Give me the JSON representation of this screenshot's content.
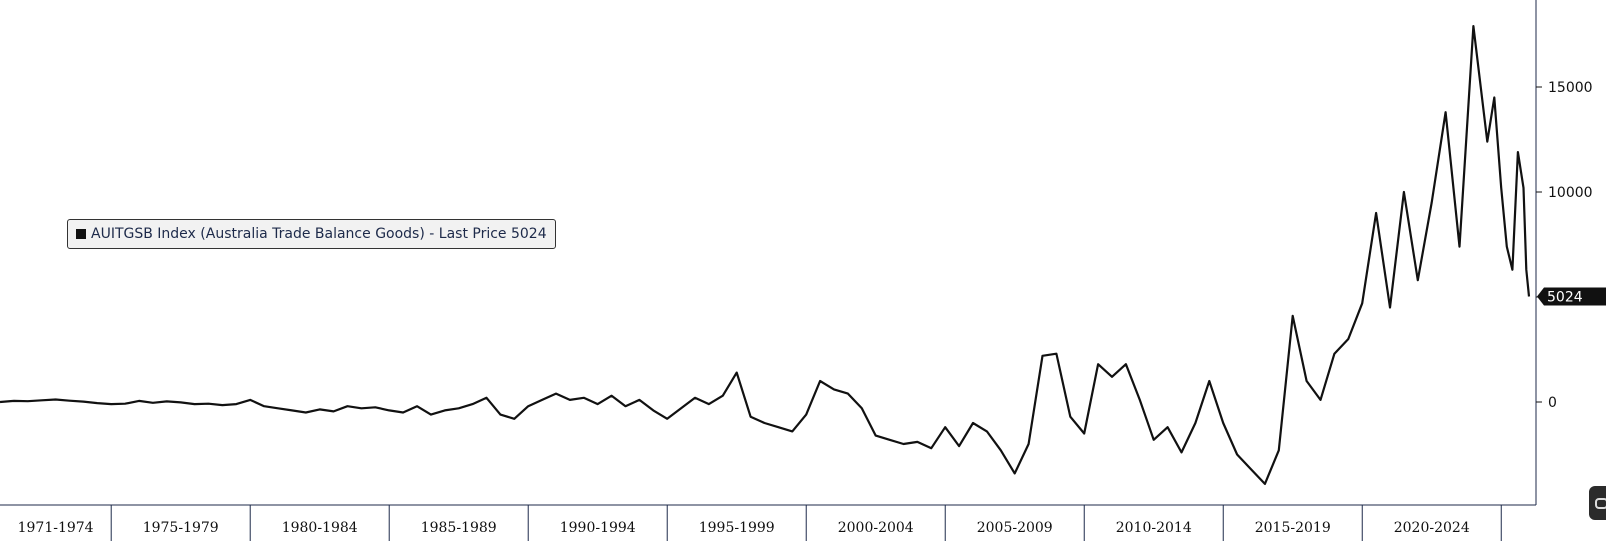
{
  "legend": {
    "text": "AUITGSB Index (Australia Trade Balance Goods) - Last Price 5024",
    "color": "#111111"
  },
  "last_price_tag": "5024",
  "chart_data": {
    "type": "line",
    "title": "",
    "xlabel": "",
    "ylabel": "",
    "ylim": [
      -5000,
      18500
    ],
    "xlim": [
      1971.0,
      2026.25
    ],
    "grid": false,
    "legend_position": "middle-left",
    "y_ticks": [
      0,
      5000,
      10000,
      15000
    ],
    "y_tick_labels": [
      "0",
      "",
      "10000",
      "15000"
    ],
    "x_tick_labels": [
      "1971-1974",
      "1975-1979",
      "1980-1984",
      "1985-1989",
      "1990-1994",
      "1995-1999",
      "2000-2004",
      "2005-2009",
      "2010-2014",
      "2015-2019",
      "2020-2024"
    ],
    "x_tick_bounds": [
      1975,
      1980,
      1985,
      1990,
      1995,
      2000,
      2005,
      2010,
      2015,
      2020,
      2025
    ],
    "series": [
      {
        "name": "AUITGSB Index (Australia Trade Balance Goods)",
        "color": "#111111",
        "points": [
          [
            1971.0,
            0
          ],
          [
            1971.5,
            50
          ],
          [
            1972.0,
            40
          ],
          [
            1972.5,
            80
          ],
          [
            1973.0,
            120
          ],
          [
            1973.5,
            60
          ],
          [
            1974.0,
            20
          ],
          [
            1974.5,
            -50
          ],
          [
            1975.0,
            -100
          ],
          [
            1975.5,
            -80
          ],
          [
            1976.0,
            50
          ],
          [
            1976.5,
            -40
          ],
          [
            1977.0,
            30
          ],
          [
            1977.5,
            -20
          ],
          [
            1978.0,
            -100
          ],
          [
            1978.5,
            -80
          ],
          [
            1979.0,
            -150
          ],
          [
            1979.5,
            -100
          ],
          [
            1980.0,
            100
          ],
          [
            1980.5,
            -200
          ],
          [
            1981.0,
            -300
          ],
          [
            1981.5,
            -400
          ],
          [
            1982.0,
            -500
          ],
          [
            1982.5,
            -350
          ],
          [
            1983.0,
            -450
          ],
          [
            1983.5,
            -200
          ],
          [
            1984.0,
            -300
          ],
          [
            1984.5,
            -250
          ],
          [
            1985.0,
            -400
          ],
          [
            1985.5,
            -500
          ],
          [
            1986.0,
            -200
          ],
          [
            1986.5,
            -600
          ],
          [
            1987.0,
            -400
          ],
          [
            1987.5,
            -300
          ],
          [
            1988.0,
            -100
          ],
          [
            1988.5,
            200
          ],
          [
            1989.0,
            -600
          ],
          [
            1989.5,
            -800
          ],
          [
            1990.0,
            -200
          ],
          [
            1990.5,
            100
          ],
          [
            1991.0,
            400
          ],
          [
            1991.5,
            100
          ],
          [
            1992.0,
            200
          ],
          [
            1992.5,
            -100
          ],
          [
            1993.0,
            300
          ],
          [
            1993.5,
            -200
          ],
          [
            1994.0,
            100
          ],
          [
            1994.5,
            -400
          ],
          [
            1995.0,
            -800
          ],
          [
            1995.5,
            -300
          ],
          [
            1996.0,
            200
          ],
          [
            1996.5,
            -100
          ],
          [
            1997.0,
            300
          ],
          [
            1997.5,
            1400
          ],
          [
            1998.0,
            -700
          ],
          [
            1998.5,
            -1000
          ],
          [
            1999.0,
            -1200
          ],
          [
            1999.5,
            -1400
          ],
          [
            2000.0,
            -600
          ],
          [
            2000.5,
            1000
          ],
          [
            2001.0,
            600
          ],
          [
            2001.5,
            400
          ],
          [
            2002.0,
            -300
          ],
          [
            2002.5,
            -1600
          ],
          [
            2003.0,
            -1800
          ],
          [
            2003.5,
            -2000
          ],
          [
            2004.0,
            -1900
          ],
          [
            2004.5,
            -2200
          ],
          [
            2005.0,
            -1200
          ],
          [
            2005.5,
            -2100
          ],
          [
            2006.0,
            -1000
          ],
          [
            2006.5,
            -1400
          ],
          [
            2007.0,
            -2300
          ],
          [
            2007.5,
            -3400
          ],
          [
            2008.0,
            -2000
          ],
          [
            2008.5,
            2200
          ],
          [
            2009.0,
            2300
          ],
          [
            2009.5,
            -700
          ],
          [
            2010.0,
            -1500
          ],
          [
            2010.5,
            1800
          ],
          [
            2011.0,
            1200
          ],
          [
            2011.5,
            1800
          ],
          [
            2012.0,
            100
          ],
          [
            2012.5,
            -1800
          ],
          [
            2013.0,
            -1200
          ],
          [
            2013.5,
            -2400
          ],
          [
            2014.0,
            -1000
          ],
          [
            2014.5,
            1000
          ],
          [
            2015.0,
            -1000
          ],
          [
            2015.5,
            -2500
          ],
          [
            2016.0,
            -3200
          ],
          [
            2016.5,
            -3900
          ],
          [
            2017.0,
            -2300
          ],
          [
            2017.5,
            4100
          ],
          [
            2018.0,
            1000
          ],
          [
            2018.5,
            100
          ],
          [
            2019.0,
            2300
          ],
          [
            2019.5,
            3000
          ],
          [
            2020.0,
            4700
          ],
          [
            2020.5,
            9000
          ],
          [
            2021.0,
            4500
          ],
          [
            2021.5,
            10000
          ],
          [
            2022.0,
            5800
          ],
          [
            2022.5,
            9500
          ],
          [
            2023.0,
            13800
          ],
          [
            2023.5,
            7400
          ],
          [
            2024.0,
            17900
          ],
          [
            2024.5,
            12400
          ],
          [
            2024.75,
            14500
          ],
          [
            2025.0,
            10200
          ],
          [
            2025.2,
            7400
          ],
          [
            2025.4,
            6300
          ],
          [
            2025.6,
            11900
          ],
          [
            2025.8,
            10200
          ],
          [
            2025.9,
            6300
          ],
          [
            2026.0,
            5024
          ]
        ]
      }
    ]
  }
}
